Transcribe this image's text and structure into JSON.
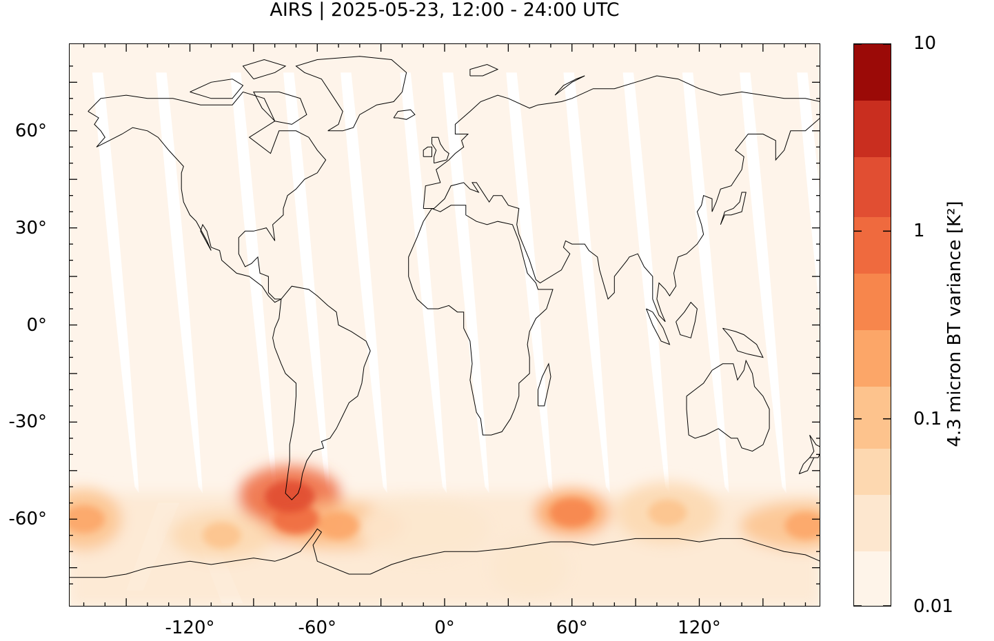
{
  "title": "AIRS | 2025-05-23, 12:00 - 24:00 UTC",
  "map": {
    "projection": "equirectangular",
    "lon_range": [
      -177,
      177
    ],
    "lat_range": [
      -87,
      87
    ],
    "coastline_color": "#000000",
    "no_data_color": "#ffffff",
    "background_color": "#fef4ea",
    "y_ticks": [
      {
        "value": 60,
        "label": "60°"
      },
      {
        "value": 30,
        "label": "30°"
      },
      {
        "value": 0,
        "label": "0°"
      },
      {
        "value": -30,
        "label": "-30°"
      },
      {
        "value": -60,
        "label": "-60°"
      }
    ],
    "x_ticks": [
      {
        "value": -120,
        "label": "-120°"
      },
      {
        "value": -60,
        "label": "-60°"
      },
      {
        "value": 0,
        "label": "0°"
      },
      {
        "value": 60,
        "label": "60°"
      },
      {
        "value": 120,
        "label": "120°"
      }
    ],
    "variance_regions": [
      {
        "name": "drake-passage",
        "lon": -70,
        "lat": -60,
        "level": 6
      },
      {
        "name": "south-america-tip",
        "lon": -73,
        "lat": -53,
        "level": 7
      },
      {
        "name": "scotia-sea",
        "lon": -50,
        "lat": -62,
        "level": 4
      },
      {
        "name": "south-pacific-west",
        "lon": -170,
        "lat": -60,
        "level": 4
      },
      {
        "name": "south-pacific",
        "lon": -105,
        "lat": -65,
        "level": 3
      },
      {
        "name": "south-atlantic",
        "lon": -10,
        "lat": -63,
        "level": 2
      },
      {
        "name": "south-indian-kerguelen",
        "lon": 60,
        "lat": -58,
        "level": 5
      },
      {
        "name": "southern-indian",
        "lon": 105,
        "lat": -58,
        "level": 3
      },
      {
        "name": "south-of-australia",
        "lon": 170,
        "lat": -62,
        "level": 4
      },
      {
        "name": "antarctic-interior",
        "lon": 40,
        "lat": -75,
        "level": 2
      }
    ]
  },
  "colorbar": {
    "title": "4.3 micron BT variance [K²]",
    "tick_labels": [
      {
        "value": 10,
        "label": "10"
      },
      {
        "value": 1,
        "label": "1"
      },
      {
        "value": 0.1,
        "label": "0.1"
      },
      {
        "value": 0.01,
        "label": "0.01"
      }
    ],
    "levels": [
      0.01,
      0.02,
      0.04,
      0.07,
      0.15,
      0.3,
      0.6,
      1.2,
      2.5,
      5,
      10
    ],
    "colors": [
      "#fef4e9",
      "#fde7cf",
      "#fdd8b0",
      "#fdc38d",
      "#fca668",
      "#f7864c",
      "#ef6a3e",
      "#e14e32",
      "#c92e1f",
      "#9b0a07"
    ]
  }
}
